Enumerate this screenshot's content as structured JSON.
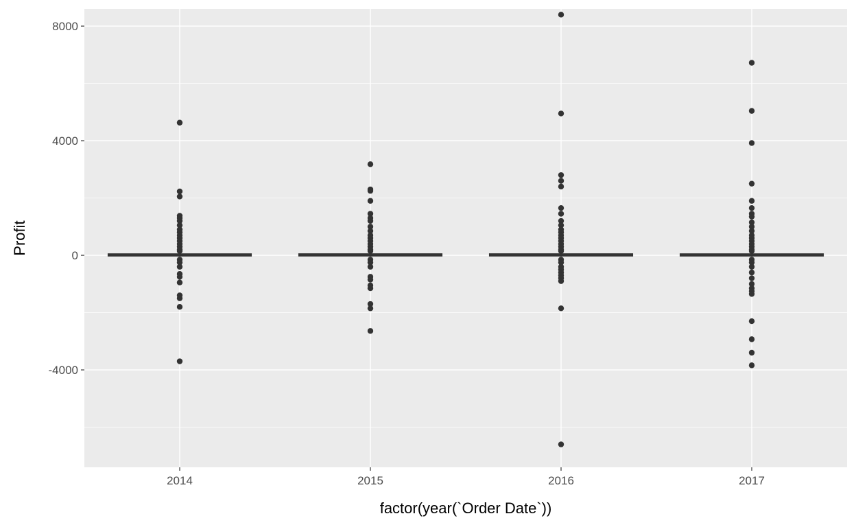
{
  "chart_data": {
    "type": "boxplot",
    "xlabel": "factor(year(`Order Date`))",
    "ylabel": "Profit",
    "categories": [
      "2014",
      "2015",
      "2016",
      "2017"
    ],
    "ylim": [
      -7400,
      8600
    ],
    "y_ticks": [
      -4000,
      0,
      4000,
      8000
    ],
    "y_tick_labels": [
      "-4000",
      "0",
      "4000",
      "8000"
    ],
    "grid": true,
    "colors": {
      "panel_background": "#ebebeb",
      "grid_line": "#ffffff",
      "box_and_points": "#333333"
    },
    "boxes": [
      {
        "category": "2014",
        "q1": -2,
        "median": 8,
        "q3": 28,
        "whisker_low": -45,
        "whisker_high": 75,
        "outliers": [
          4630,
          2230,
          2050,
          1380,
          1300,
          1200,
          1050,
          900,
          800,
          700,
          600,
          500,
          400,
          300,
          200,
          150,
          -150,
          -250,
          -400,
          -650,
          -750,
          -950,
          -1400,
          -1500,
          -1800,
          -3700
        ]
      },
      {
        "category": "2015",
        "q1": -2,
        "median": 9,
        "q3": 30,
        "whisker_low": -48,
        "whisker_high": 78,
        "outliers": [
          3180,
          2300,
          2250,
          1900,
          1450,
          1300,
          1200,
          1000,
          850,
          700,
          600,
          500,
          400,
          300,
          200,
          150,
          -150,
          -250,
          -400,
          -750,
          -850,
          -1050,
          -1150,
          -1700,
          -1850,
          -2640
        ]
      },
      {
        "category": "2016",
        "q1": -1,
        "median": 9,
        "q3": 29,
        "whisker_low": -46,
        "whisker_high": 76,
        "outliers": [
          8400,
          4950,
          2800,
          2600,
          2400,
          1650,
          1450,
          1200,
          1050,
          900,
          800,
          700,
          600,
          500,
          400,
          300,
          200,
          150,
          -150,
          -250,
          -400,
          -500,
          -600,
          -700,
          -800,
          -900,
          -1850,
          -6600
        ]
      },
      {
        "category": "2017",
        "q1": -2,
        "median": 8,
        "q3": 28,
        "whisker_low": -45,
        "whisker_high": 75,
        "outliers": [
          6720,
          5040,
          3920,
          2500,
          1900,
          1650,
          1450,
          1350,
          1150,
          1000,
          850,
          700,
          600,
          500,
          400,
          300,
          200,
          150,
          -150,
          -250,
          -400,
          -600,
          -800,
          -1000,
          -1150,
          -1250,
          -1350,
          -2300,
          -2930,
          -3400,
          -3840
        ]
      }
    ]
  }
}
